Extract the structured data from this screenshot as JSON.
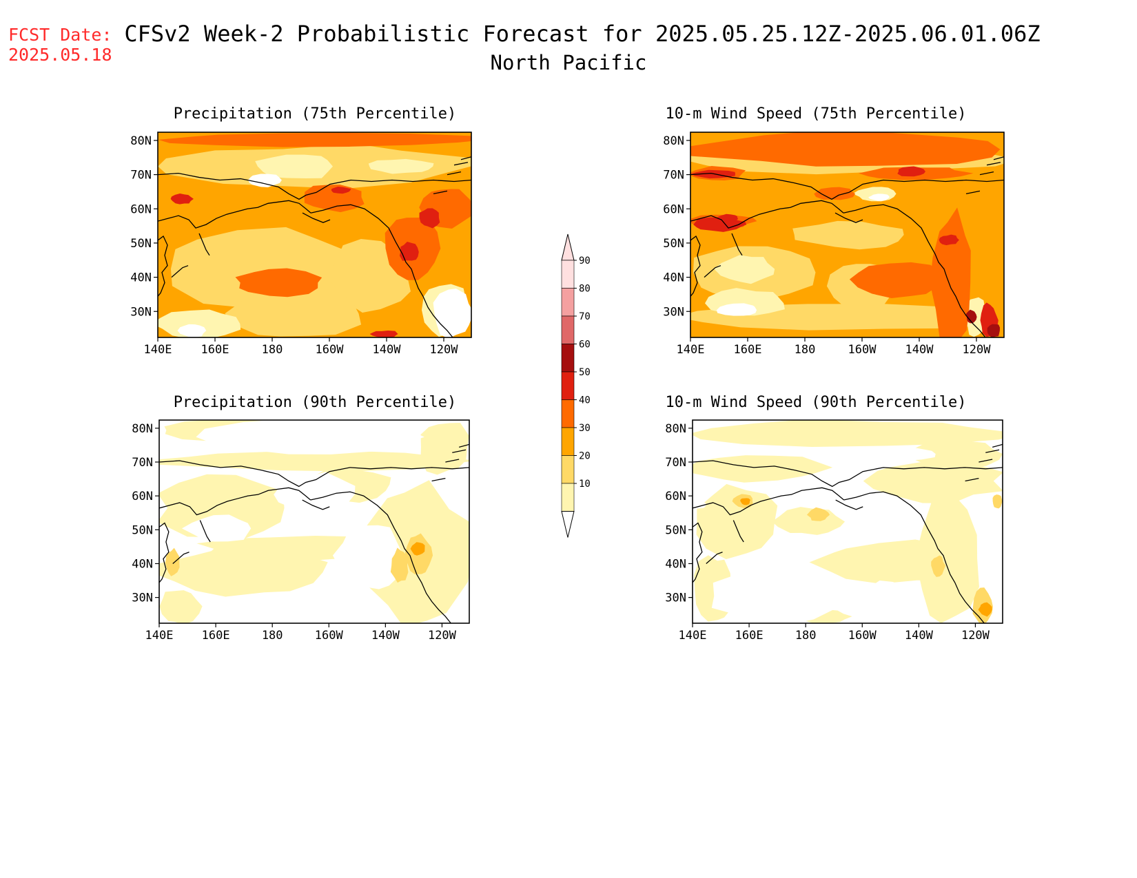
{
  "header": {
    "fcst_label": "FCST Date:",
    "fcst_date": "2025.05.18",
    "title": "CFSv2 Week-2 Probabilistic Forecast for 2025.05.25.12Z-2025.06.01.06Z",
    "subtitle": "North Pacific"
  },
  "axes": {
    "lon_ticks": [
      "140E",
      "160E",
      "180",
      "160W",
      "140W",
      "120W"
    ],
    "lat_ticks": [
      "80N",
      "70N",
      "60N",
      "50N",
      "40N",
      "30N"
    ]
  },
  "panels": [
    {
      "title": "Precipitation (75th Percentile)",
      "shading": "high"
    },
    {
      "title": "10-m Wind Speed (75th Percentile)",
      "shading": "high"
    },
    {
      "title": "Precipitation (90th Percentile)",
      "shading": "low"
    },
    {
      "title": "10-m Wind Speed (90th Percentile)",
      "shading": "low"
    }
  ],
  "colorbar": {
    "labels": [
      "90",
      "80",
      "70",
      "60",
      "50",
      "40",
      "30",
      "20",
      "10"
    ],
    "colors": [
      "#ffe0e0",
      "#f4a0a0",
      "#e06868",
      "#a50f0f",
      "#e02010",
      "#ff6a00",
      "#ffa500",
      "#ffd966",
      "#fff5b0"
    ]
  },
  "colors": {
    "title": "#000000",
    "fcst": "#ff2a2a",
    "coast": "#000000"
  }
}
